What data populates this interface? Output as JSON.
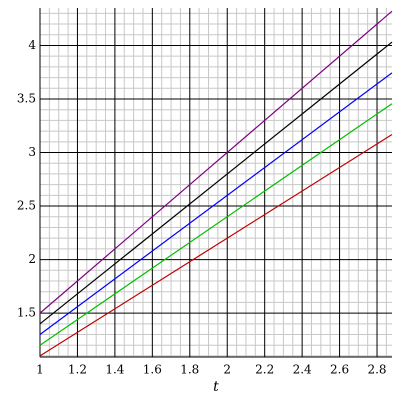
{
  "chart_data": {
    "type": "line",
    "xlabel": "t",
    "x": [
      1,
      2.88
    ],
    "series": [
      {
        "color": "#800080",
        "values": [
          1.5,
          4.32
        ]
      },
      {
        "color": "#000000",
        "values": [
          1.4,
          4.032
        ]
      },
      {
        "color": "#0000ff",
        "values": [
          1.3,
          3.744
        ]
      },
      {
        "color": "#00c000",
        "values": [
          1.2,
          3.456
        ]
      },
      {
        "color": "#c00000",
        "values": [
          1.1,
          3.168
        ]
      }
    ],
    "xlim": [
      1,
      2.88
    ],
    "ylim": [
      1.09,
      4.35
    ],
    "xticks": [
      1,
      1.2,
      1.4,
      1.6,
      1.8,
      2,
      2.2,
      2.4,
      2.6,
      2.8
    ],
    "yticks": [
      1.5,
      2,
      2.5,
      3,
      3.5,
      4
    ],
    "xminorticks": [
      1.05,
      1.1,
      1.15,
      1.25,
      1.3,
      1.35,
      1.45,
      1.5,
      1.55,
      1.65,
      1.7,
      1.75,
      1.85,
      1.9,
      1.95,
      2.05,
      2.1,
      2.15,
      2.25,
      2.3,
      2.35,
      2.45,
      2.5,
      2.55,
      2.65,
      2.7,
      2.75,
      2.85
    ],
    "yminorticks": [
      1.1,
      1.2,
      1.3,
      1.4,
      1.6,
      1.7,
      1.8,
      1.9,
      2.1,
      2.2,
      2.3,
      2.4,
      2.6,
      2.7,
      2.8,
      2.9,
      3.1,
      3.2,
      3.3,
      3.4,
      3.6,
      3.7,
      3.8,
      3.9,
      4.1,
      4.2,
      4.3
    ],
    "grid": true
  }
}
